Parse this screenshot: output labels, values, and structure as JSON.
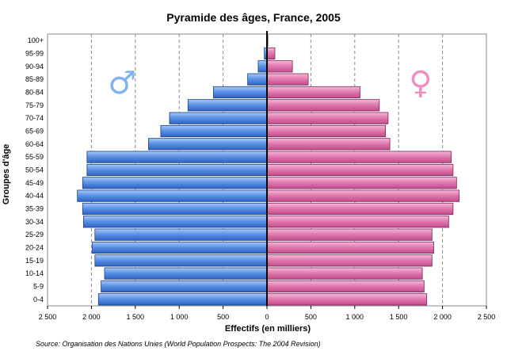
{
  "chart_data": {
    "type": "bar",
    "orientation": "horizontal",
    "title": "Pyramide des âges, France, 2005",
    "xlabel": "Effectifs (en milliers)",
    "ylabel": "Groupes d'âge",
    "categories": [
      "0-4",
      "5-9",
      "10-14",
      "15-19",
      "20-24",
      "25-29",
      "30-34",
      "35-39",
      "40-44",
      "45-49",
      "50-54",
      "55-59",
      "60-64",
      "65-69",
      "70-74",
      "75-79",
      "80-84",
      "85-89",
      "90-94",
      "95-99",
      "100+"
    ],
    "series": [
      {
        "name": "♂",
        "symbol": "♂",
        "color": "#4d86df",
        "values": [
          1920,
          1890,
          1850,
          1960,
          1990,
          1960,
          2090,
          2100,
          2160,
          2100,
          2050,
          2050,
          1350,
          1210,
          1110,
          900,
          610,
          220,
          100,
          30,
          5
        ]
      },
      {
        "name": "♀",
        "symbol": "♀",
        "color": "#e67cb1",
        "values": [
          1820,
          1790,
          1770,
          1880,
          1900,
          1880,
          2070,
          2120,
          2190,
          2160,
          2120,
          2100,
          1400,
          1350,
          1380,
          1280,
          1060,
          470,
          290,
          90,
          10
        ]
      }
    ],
    "xlim": [
      -2500,
      2500
    ],
    "xticks": [
      "2 500",
      "2 000",
      "1 500",
      "1 000",
      "500",
      "0",
      "500",
      "1 000",
      "1 500",
      "2 000",
      "2 500"
    ],
    "grid": true,
    "legend": "symbols inside plot"
  },
  "source_note": "Source: Organisation des Nations Unies (World Population Prospects: The 2004 Revision)"
}
